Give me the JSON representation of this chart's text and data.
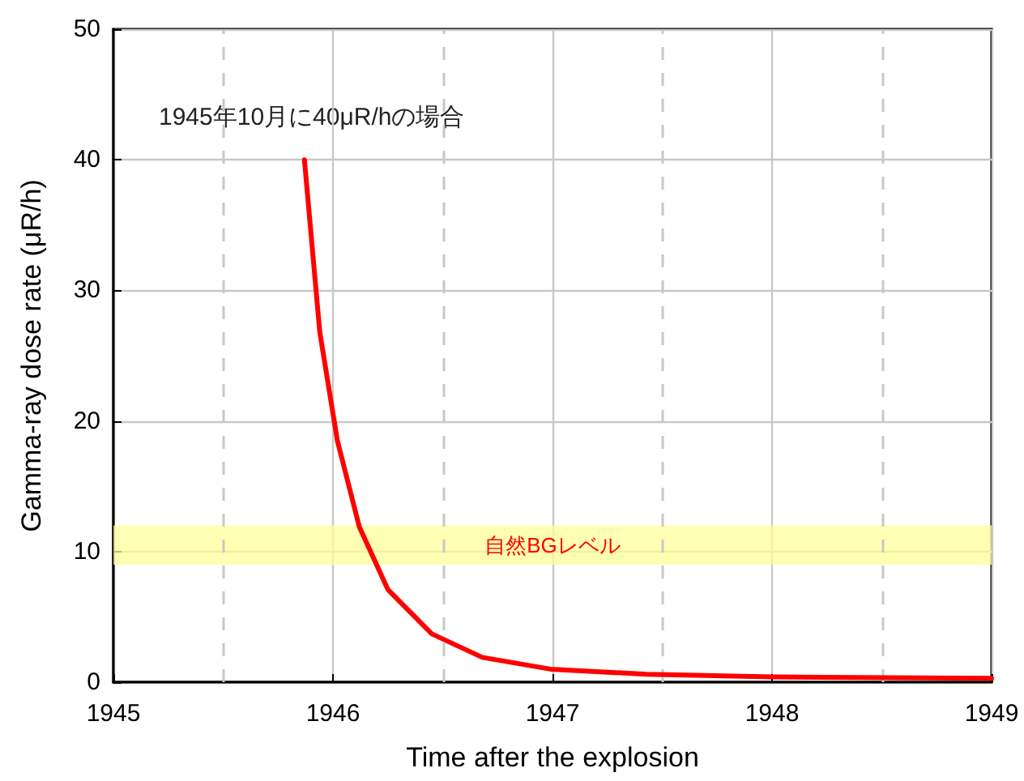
{
  "chart_data": {
    "type": "line",
    "xlabel": "Time after the explosion",
    "ylabel": "Gamma-ray dose rate (μR/h)",
    "annotations": [
      "1945年10月に40μR/hの場合"
    ],
    "x": [
      1945.87,
      1945.94,
      1946.02,
      1946.12,
      1946.25,
      1946.45,
      1946.68,
      1946.99,
      1947.43,
      1948,
      1949
    ],
    "series": [
      {
        "color": "#ff0000",
        "values": [
          40,
          26.8,
          18.5,
          11.9,
          7.1,
          3.7,
          1.9,
          1.0,
          0.6,
          0.4,
          0.3
        ]
      }
    ],
    "xlim": [
      1945,
      1949
    ],
    "xticks": [
      1945,
      {
        "value": 1945.5,
        "label": null
      },
      1946,
      {
        "value": 1946.5,
        "label": null
      },
      1947,
      {
        "value": 1947.5,
        "label": null
      },
      1948,
      {
        "value": 1948.5,
        "label": null
      },
      1949
    ],
    "ylim": [
      0,
      50
    ],
    "yticks": [
      0,
      10,
      20,
      30,
      40,
      50
    ],
    "bands": [
      {
        "axis": "y",
        "from": 9,
        "to": 12,
        "label": "自然BGレベル",
        "color": "#ffff99"
      }
    ],
    "grid": true,
    "marker": "none",
    "line_style": "solid"
  }
}
